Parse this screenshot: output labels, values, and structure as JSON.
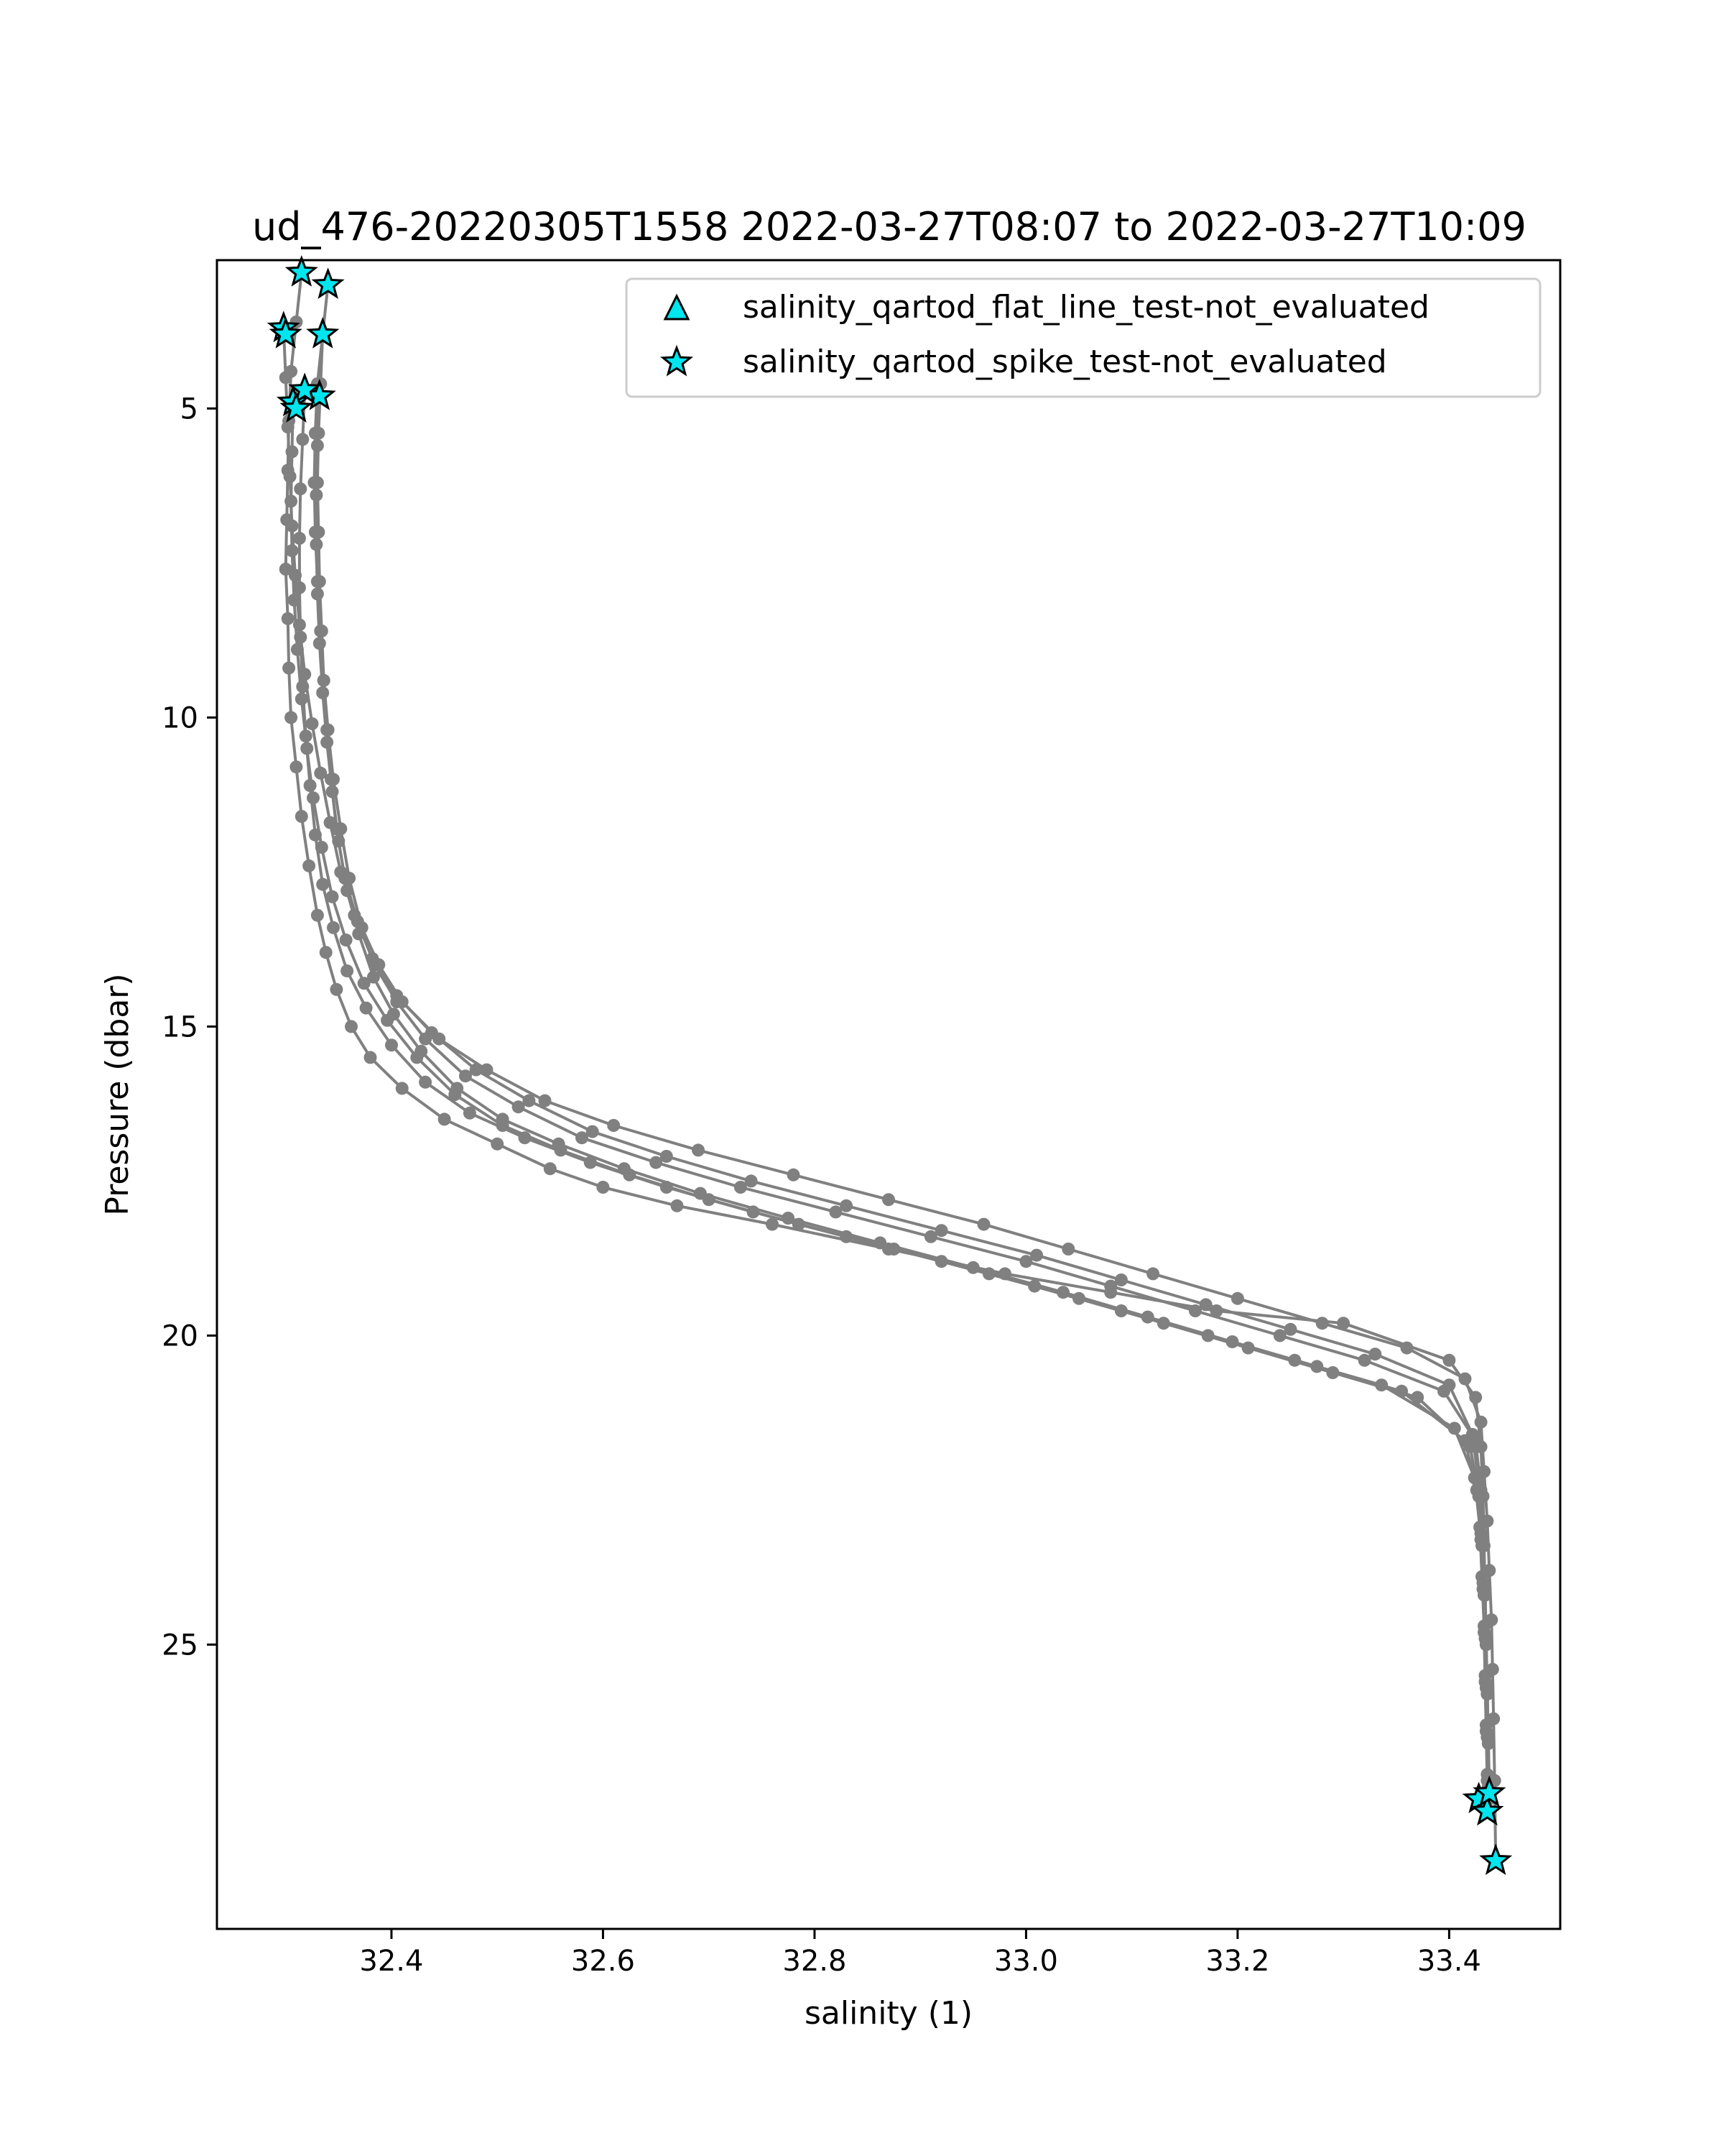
{
  "chart_data": {
    "type": "line",
    "title": "ud_476-20220305T1558 2022-03-27T08:07 to 2022-03-27T10:09",
    "xlabel": "salinity (1)",
    "ylabel": "Pressure (dbar)",
    "xlim": [
      32.235,
      33.505
    ],
    "ylim": [
      29.6,
      2.6
    ],
    "y_inverted": true,
    "grid": false,
    "legend_position": "upper-right",
    "x_ticks": [
      "32.4",
      "32.6",
      "32.8",
      "33.0",
      "33.2",
      "33.4"
    ],
    "y_ticks": [
      "5",
      "10",
      "15",
      "20",
      "25"
    ],
    "line_color": "#808080",
    "marker_color": "#00e5ee",
    "legend": [
      {
        "label": "salinity_qartod_flat_line_test-not_evaluated",
        "marker": "triangle"
      },
      {
        "label": "salinity_qartod_spike_test-not_evaluated",
        "marker": "star"
      }
    ],
    "profiles": [
      {
        "x": [
          32.315,
          32.31,
          32.305,
          32.303,
          32.302,
          32.301,
          32.3,
          32.302,
          32.303,
          32.305,
          32.31,
          32.315,
          32.322,
          32.33,
          32.338,
          32.348,
          32.362,
          32.38,
          32.41,
          32.45,
          32.5,
          32.55,
          32.6,
          32.67,
          32.76,
          32.87,
          32.98,
          33.08,
          33.18,
          33.3,
          33.4,
          33.425,
          33.43,
          33.432,
          33.433,
          33.434,
          33.435,
          33.436,
          33.437,
          33.438
        ],
        "y": [
          2.8,
          3.6,
          4.4,
          5.2,
          6.0,
          6.8,
          7.6,
          8.4,
          9.2,
          10.0,
          10.8,
          11.6,
          12.4,
          13.2,
          13.8,
          14.4,
          15.0,
          15.5,
          16.0,
          16.5,
          16.9,
          17.3,
          17.6,
          17.9,
          18.2,
          18.6,
          19.0,
          19.3,
          19.6,
          19.8,
          20.4,
          21.0,
          21.8,
          22.6,
          23.4,
          24.2,
          25.0,
          25.8,
          26.6,
          27.5
        ]
      },
      {
        "x": [
          32.34,
          32.335,
          32.33,
          32.328,
          32.327,
          32.328,
          32.33,
          32.333,
          32.336,
          32.34,
          32.345,
          32.352,
          32.36,
          32.372,
          32.388,
          32.41,
          32.445,
          32.49,
          32.545,
          32.61,
          32.69,
          32.78,
          32.87,
          32.96,
          33.04,
          33.12,
          33.2,
          33.28,
          33.36,
          33.415,
          33.43,
          33.433,
          33.436,
          33.438,
          33.44,
          33.441,
          33.442,
          33.443,
          33.444
        ],
        "y": [
          3.0,
          3.8,
          4.6,
          5.4,
          6.2,
          7.0,
          7.8,
          8.6,
          9.4,
          10.2,
          11.0,
          11.8,
          12.6,
          13.4,
          14.0,
          14.6,
          15.2,
          15.7,
          16.2,
          16.6,
          17.0,
          17.4,
          17.8,
          18.2,
          18.6,
          19.0,
          19.4,
          19.8,
          20.2,
          20.7,
          21.4,
          22.2,
          23.0,
          23.8,
          24.6,
          25.4,
          26.2,
          27.2,
          28.5
        ]
      },
      {
        "x": [
          32.298,
          32.3,
          32.302,
          32.304,
          32.306,
          32.309,
          32.313,
          32.318,
          32.325,
          32.333,
          32.342,
          32.352,
          32.365,
          32.382,
          32.405,
          32.438,
          32.48,
          32.53,
          32.59,
          32.66,
          32.74,
          32.83,
          32.92,
          33.01,
          33.09,
          33.17,
          33.25,
          33.33,
          33.4,
          33.422,
          33.428,
          33.43,
          33.432,
          33.433,
          33.434,
          33.435,
          33.436,
          33.437
        ],
        "y": [
          3.7,
          4.5,
          5.3,
          6.1,
          6.9,
          7.7,
          8.5,
          9.3,
          10.1,
          10.9,
          11.7,
          12.5,
          13.2,
          13.9,
          14.5,
          15.1,
          15.7,
          16.2,
          16.7,
          17.1,
          17.5,
          17.9,
          18.3,
          18.7,
          19.1,
          19.5,
          19.9,
          20.3,
          20.8,
          21.6,
          22.4,
          23.2,
          24.0,
          24.8,
          25.6,
          26.4,
          27.2,
          27.7
        ]
      },
      {
        "x": [
          32.335,
          32.333,
          32.331,
          32.33,
          32.331,
          32.332,
          32.334,
          32.336,
          32.339,
          32.343,
          32.348,
          32.356,
          32.368,
          32.384,
          32.405,
          32.432,
          32.47,
          32.52,
          32.58,
          32.65,
          32.73,
          32.82,
          32.91,
          33.0,
          33.08,
          33.16,
          33.24,
          33.32,
          33.395,
          33.425,
          33.43,
          33.432,
          33.434,
          33.435,
          33.436,
          33.437,
          33.438
        ],
        "y": [
          3.8,
          4.6,
          5.4,
          6.2,
          7.0,
          7.8,
          8.6,
          9.4,
          10.2,
          11.0,
          11.8,
          12.6,
          13.3,
          14.0,
          14.6,
          15.2,
          15.8,
          16.3,
          16.8,
          17.2,
          17.6,
          18.0,
          18.4,
          18.8,
          19.2,
          19.6,
          20.0,
          20.4,
          20.9,
          21.7,
          22.5,
          23.3,
          24.1,
          24.9,
          25.7,
          26.5,
          27.3
        ]
      },
      {
        "x": [
          32.307,
          32.306,
          32.305,
          32.306,
          32.308,
          32.311,
          32.315,
          32.32,
          32.326,
          32.334,
          32.344,
          32.357,
          32.374,
          32.396,
          32.424,
          32.46,
          32.505,
          32.56,
          32.625,
          32.7,
          32.785,
          32.875,
          32.965,
          33.05,
          33.13,
          33.21,
          33.29,
          33.37,
          33.42,
          33.428,
          33.431,
          33.433,
          33.435,
          33.436,
          33.437,
          33.438
        ],
        "y": [
          4.9,
          5.7,
          6.5,
          7.3,
          8.1,
          8.9,
          9.7,
          10.5,
          11.3,
          12.1,
          12.9,
          13.6,
          14.3,
          14.9,
          15.5,
          16.1,
          16.6,
          17.0,
          17.4,
          17.8,
          18.2,
          18.6,
          19.0,
          19.4,
          19.8,
          20.2,
          20.6,
          21.0,
          21.8,
          22.6,
          23.4,
          24.2,
          25.0,
          25.8,
          26.6,
          27.4
        ]
      },
      {
        "x": [
          32.332,
          32.33,
          32.329,
          32.329,
          32.33,
          32.332,
          32.335,
          32.339,
          32.344,
          32.35,
          32.358,
          32.369,
          32.383,
          32.402,
          32.428,
          32.462,
          32.505,
          32.558,
          32.62,
          32.692,
          32.775,
          32.862,
          32.95,
          33.035,
          33.115,
          33.195,
          33.275,
          33.355,
          33.415,
          33.426,
          33.43,
          33.432,
          33.434,
          33.435,
          33.436,
          33.437
        ],
        "y": [
          4.8,
          5.6,
          6.4,
          7.2,
          8.0,
          8.8,
          9.6,
          10.4,
          11.2,
          12.0,
          12.8,
          13.5,
          14.2,
          14.8,
          15.4,
          16.0,
          16.5,
          16.9,
          17.3,
          17.7,
          18.1,
          18.5,
          18.9,
          19.3,
          19.7,
          20.1,
          20.5,
          20.9,
          21.7,
          22.5,
          23.3,
          24.1,
          24.9,
          25.7,
          26.5,
          27.3
        ]
      },
      {
        "x": [
          32.318,
          32.316,
          32.314,
          32.313,
          32.313,
          32.314,
          32.316,
          32.319,
          32.323,
          32.328,
          32.335,
          32.345,
          32.358,
          32.376,
          32.4,
          32.432,
          32.474,
          32.526,
          32.588,
          32.66,
          32.742,
          32.83,
          32.92,
          33.008,
          33.09,
          33.172,
          33.254,
          33.336,
          33.405,
          33.424,
          33.429,
          33.431,
          33.433,
          33.434,
          33.435,
          33.436
        ],
        "y": [
          4.7,
          5.5,
          6.3,
          7.1,
          7.9,
          8.7,
          9.5,
          10.3,
          11.1,
          11.9,
          12.7,
          13.4,
          14.1,
          14.7,
          15.3,
          15.9,
          16.4,
          16.8,
          17.2,
          17.6,
          18.0,
          18.4,
          18.8,
          19.2,
          19.6,
          20.0,
          20.4,
          20.8,
          21.5,
          22.3,
          23.1,
          23.9,
          24.7,
          25.5,
          26.3,
          27.1
        ]
      }
    ],
    "spike_test_points": {
      "x": [
        32.315,
        32.34,
        32.298,
        32.3,
        32.335,
        32.307,
        32.332,
        32.318,
        32.31,
        33.428,
        33.436,
        33.438,
        33.444
      ],
      "y": [
        2.8,
        3.0,
        3.7,
        3.8,
        3.8,
        4.9,
        4.8,
        4.7,
        5.0,
        27.5,
        27.7,
        27.4,
        28.5
      ]
    }
  }
}
